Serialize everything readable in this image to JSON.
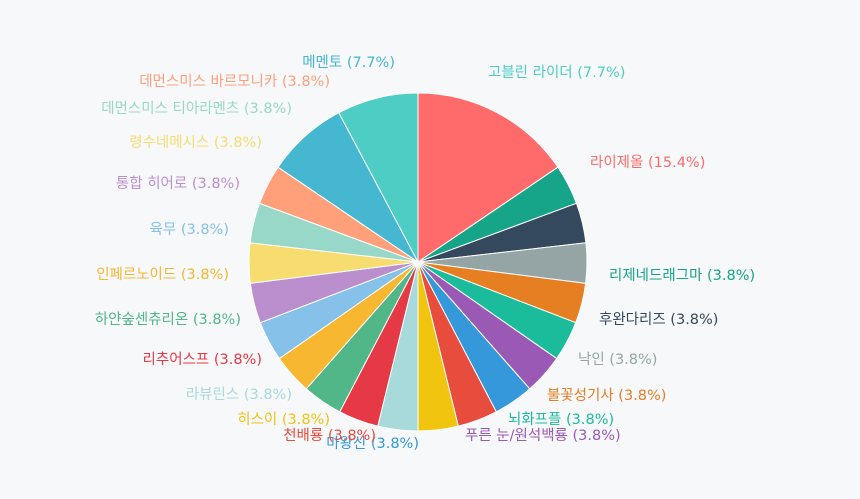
{
  "chart_data": {
    "type": "pie",
    "title": "",
    "slices": [
      {
        "label": "라이제올",
        "value": 15.4,
        "pct_text": "(15.4%)",
        "color": "#ff6b6b"
      },
      {
        "label": "리제네드래그마",
        "value": 3.8,
        "pct_text": "(3.8%)",
        "color": "#17a589"
      },
      {
        "label": "후완다리즈",
        "value": 3.8,
        "pct_text": "(3.8%)",
        "color": "#34495e"
      },
      {
        "label": "낙인",
        "value": 3.8,
        "pct_text": "(3.8%)",
        "color": "#95a5a6"
      },
      {
        "label": "불꽃성기사",
        "value": 3.8,
        "pct_text": "(3.8%)",
        "color": "#e67e22"
      },
      {
        "label": "뇌화프플",
        "value": 3.8,
        "pct_text": "(3.8%)",
        "color": "#1abc9c"
      },
      {
        "label": "푸른 눈/원석백룡",
        "value": 3.8,
        "pct_text": "(3.8%)",
        "color": "#9b59b6"
      },
      {
        "label": "마왕신",
        "value": 3.8,
        "pct_text": "(3.8%)",
        "color": "#3498db"
      },
      {
        "label": "천배룡",
        "value": 3.8,
        "pct_text": "(3.8%)",
        "color": "#e74c3c"
      },
      {
        "label": "히스이",
        "value": 3.8,
        "pct_text": "(3.8%)",
        "color": "#f1c40f"
      },
      {
        "label": "라뷰린스",
        "value": 3.8,
        "pct_text": "(3.8%)",
        "color": "#a8dadc"
      },
      {
        "label": "리추어스프",
        "value": 3.8,
        "pct_text": "(3.8%)",
        "color": "#e63946"
      },
      {
        "label": "하얀숲센츄리온",
        "value": 3.8,
        "pct_text": "(3.8%)",
        "color": "#52b788"
      },
      {
        "label": "인페르노이드",
        "value": 3.8,
        "pct_text": "(3.8%)",
        "color": "#f7b731"
      },
      {
        "label": "육무",
        "value": 3.8,
        "pct_text": "(3.8%)",
        "color": "#85c1e9"
      },
      {
        "label": "통합 히어로",
        "value": 3.8,
        "pct_text": "(3.8%)",
        "color": "#bb8fce"
      },
      {
        "label": "령수네메시스",
        "value": 3.8,
        "pct_text": "(3.8%)",
        "color": "#f7dc6f"
      },
      {
        "label": "데먼스미스 티아라멘츠",
        "value": 3.8,
        "pct_text": "(3.8%)",
        "color": "#98d8c8"
      },
      {
        "label": "데먼스미스 바르모니카",
        "value": 3.8,
        "pct_text": "(3.8%)",
        "color": "#ffa07a"
      },
      {
        "label": "메멘토",
        "value": 7.7,
        "pct_text": "(7.7%)",
        "color": "#45b7d1"
      },
      {
        "label": "고블린 라이더",
        "value": 7.7,
        "pct_text": "(7.7%)",
        "color": "#4ecdc4"
      }
    ]
  }
}
